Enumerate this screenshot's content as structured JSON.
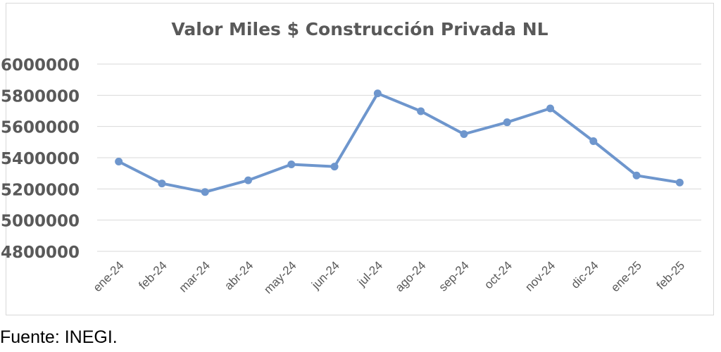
{
  "chart_data": {
    "type": "line",
    "title": "Valor Miles $ Construcción Privada NL",
    "xlabel": "",
    "ylabel": "",
    "categories": [
      "ene-24",
      "feb-24",
      "mar-24",
      "abr-24",
      "may-24",
      "jun-24",
      "jul-24",
      "ago-24",
      "sep-24",
      "oct-24",
      "nov-24",
      "dic-24",
      "ene-25",
      "feb-25"
    ],
    "series": [
      {
        "values": [
          5375000,
          5235000,
          5180000,
          5255000,
          5357000,
          5343000,
          5812000,
          5698000,
          5551000,
          5627000,
          5716000,
          5506000,
          5286000,
          5241000
        ],
        "color": "#6e96cd"
      }
    ],
    "ylim": [
      4800000,
      6000000
    ],
    "yticks": [
      "4800000",
      "5000000",
      "5200000",
      "5400000",
      "5600000",
      "5800000",
      "6000000"
    ],
    "grid": true,
    "legend": "none"
  },
  "source": "Fuente: INEGI."
}
